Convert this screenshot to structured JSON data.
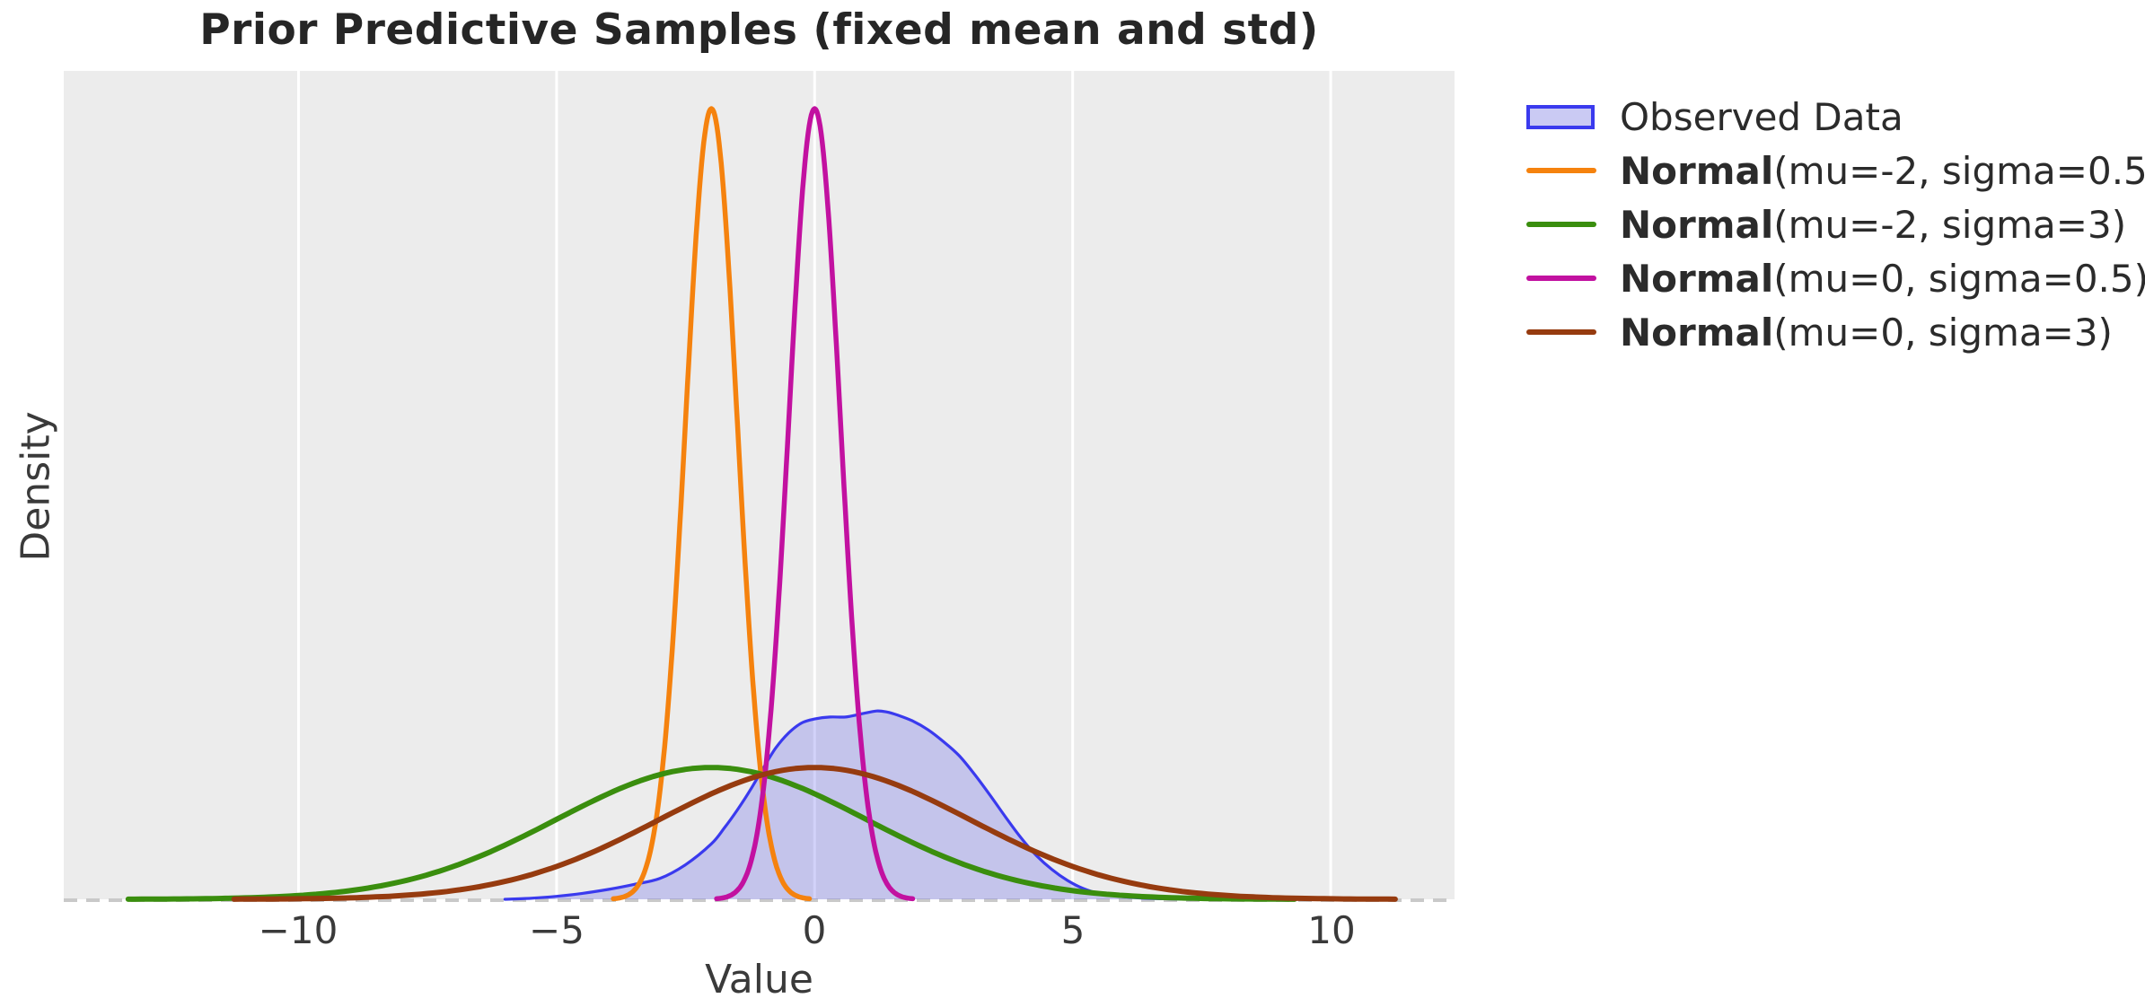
{
  "title": "Prior Predictive Samples (fixed mean and std)",
  "axes": {
    "xlabel": "Value",
    "ylabel": "Density",
    "background": "#ececec",
    "grid_color": "#ffffff",
    "x_ticks": [
      {
        "value": -10,
        "label": "−10"
      },
      {
        "value": -5,
        "label": "−5"
      },
      {
        "value": 0,
        "label": "0"
      },
      {
        "value": 5,
        "label": "5"
      },
      {
        "value": 10,
        "label": "10"
      }
    ]
  },
  "legend": {
    "position": "outside-upper-right",
    "items": [
      {
        "label_bold": "",
        "label_rest": "Observed Data",
        "swatch": "patch",
        "fill": "#cacaf3",
        "edge": "#3a3aee"
      },
      {
        "label_bold": "Normal",
        "label_rest": "(mu=-2, sigma=0.5)",
        "swatch": "line",
        "color": "#f5820e"
      },
      {
        "label_bold": "Normal",
        "label_rest": "(mu=-2, sigma=3)",
        "swatch": "line",
        "color": "#3a8e0e"
      },
      {
        "label_bold": "Normal",
        "label_rest": "(mu=0, sigma=0.5)",
        "swatch": "line",
        "color": "#c211a0"
      },
      {
        "label_bold": "Normal",
        "label_rest": "(mu=0, sigma=3)",
        "swatch": "line",
        "color": "#963b0f"
      }
    ]
  },
  "chart_data": {
    "type": "line",
    "title": "Prior Predictive Samples (fixed mean and std)",
    "xlabel": "Value",
    "ylabel": "Density",
    "xlim": [
      -14.55,
      12.4
    ],
    "ylim": [
      0,
      0.836
    ],
    "x_tick_values": [
      -10,
      -5,
      0,
      5,
      10
    ],
    "grid": "vertical-gridlines-only",
    "baseline": {
      "y": 0,
      "style": "dashed",
      "color": "#c9c9c9",
      "dash": [
        15,
        10
      ],
      "width": 4
    },
    "series": [
      {
        "key": "observed-data",
        "name": "Observed Data",
        "type": "kde-filled-area",
        "fill": "rgba(92,92,235,0.28)",
        "edge": "#3a3aee",
        "edge_width": 3.2,
        "points": [
          [
            -6.0,
            0.0
          ],
          [
            -5.5,
            0.001
          ],
          [
            -5.0,
            0.003
          ],
          [
            -4.5,
            0.006
          ],
          [
            -4.0,
            0.01
          ],
          [
            -3.5,
            0.015
          ],
          [
            -3.0,
            0.021
          ],
          [
            -2.5,
            0.035
          ],
          [
            -2.0,
            0.056
          ],
          [
            -1.75,
            0.072
          ],
          [
            -1.5,
            0.09
          ],
          [
            -1.25,
            0.11
          ],
          [
            -1.0,
            0.132
          ],
          [
            -0.75,
            0.153
          ],
          [
            -0.5,
            0.168
          ],
          [
            -0.25,
            0.178
          ],
          [
            0.0,
            0.182
          ],
          [
            0.3,
            0.184
          ],
          [
            0.6,
            0.184
          ],
          [
            0.9,
            0.187
          ],
          [
            1.2,
            0.19
          ],
          [
            1.4,
            0.189
          ],
          [
            1.6,
            0.186
          ],
          [
            1.9,
            0.18
          ],
          [
            2.2,
            0.171
          ],
          [
            2.5,
            0.159
          ],
          [
            2.8,
            0.145
          ],
          [
            3.1,
            0.126
          ],
          [
            3.4,
            0.105
          ],
          [
            3.7,
            0.083
          ],
          [
            4.0,
            0.062
          ],
          [
            4.3,
            0.044
          ],
          [
            4.6,
            0.03
          ],
          [
            4.9,
            0.019
          ],
          [
            5.2,
            0.011
          ],
          [
            5.5,
            0.006
          ],
          [
            5.9,
            0.003
          ],
          [
            6.4,
            0.001
          ],
          [
            6.8,
            0.0005
          ],
          [
            7.3,
            0.0
          ]
        ]
      },
      {
        "key": "normal-mu-neg2-sigma-0p5",
        "name": "Normal(mu=-2, sigma=0.5)",
        "type": "normal-pdf",
        "mu": -2,
        "sigma": 0.5,
        "color": "#f5820e",
        "width": 5.5,
        "x_range": [
          -3.9,
          -0.1
        ],
        "peak_density": 0.798
      },
      {
        "key": "normal-mu-neg2-sigma-3",
        "name": "Normal(mu=-2, sigma=3)",
        "type": "normal-pdf",
        "mu": -2,
        "sigma": 3,
        "color": "#3a8e0e",
        "width": 6,
        "x_range": [
          -13.3,
          9.3
        ],
        "peak_density": 0.133
      },
      {
        "key": "normal-mu-0-sigma-0p5",
        "name": "Normal(mu=0, sigma=0.5)",
        "type": "normal-pdf",
        "mu": 0,
        "sigma": 0.5,
        "color": "#c211a0",
        "width": 5.5,
        "x_range": [
          -1.9,
          1.9
        ],
        "peak_density": 0.798
      },
      {
        "key": "normal-mu-0-sigma-3",
        "name": "Normal(mu=0, sigma=3)",
        "type": "normal-pdf",
        "mu": 0,
        "sigma": 3,
        "color": "#963b0f",
        "width": 6,
        "x_range": [
          -11.25,
          11.25
        ],
        "peak_density": 0.133
      }
    ]
  }
}
